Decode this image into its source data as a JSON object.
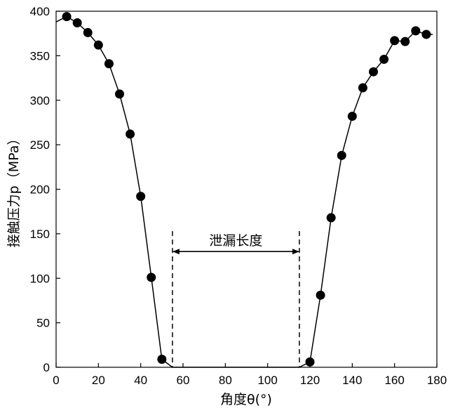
{
  "chart_data": {
    "type": "scatter",
    "title": "",
    "xlabel": "角度θ(°)",
    "ylabel": "接触压力p（MPa）",
    "xlim": [
      0,
      180
    ],
    "ylim": [
      0,
      400
    ],
    "xticks": [
      0,
      20,
      40,
      60,
      80,
      100,
      120,
      140,
      160,
      180
    ],
    "yticks": [
      0,
      50,
      100,
      150,
      200,
      250,
      300,
      350,
      400
    ],
    "grid": false,
    "legend": "none",
    "series": [
      {
        "x": [
          5,
          10,
          15,
          20,
          25,
          30,
          35,
          40,
          45,
          50,
          120,
          125,
          130,
          135,
          140,
          145,
          150,
          155,
          160,
          165,
          170,
          175
        ],
        "y": [
          394,
          387,
          376,
          362,
          341,
          307,
          262,
          192,
          101,
          9,
          6,
          81,
          168,
          238,
          282,
          314,
          332,
          346,
          367,
          366,
          378,
          374
        ],
        "color": "#000000"
      }
    ],
    "curve": {
      "x": [
        0,
        5,
        10,
        15,
        20,
        25,
        30,
        35,
        40,
        45,
        50,
        55,
        115,
        120,
        125,
        130,
        135,
        140,
        145,
        150,
        155,
        160,
        165,
        170,
        175,
        178
      ],
      "y": [
        388,
        394,
        387,
        376,
        362,
        341,
        307,
        262,
        192,
        101,
        9,
        0,
        0,
        6,
        81,
        168,
        238,
        282,
        314,
        332,
        346,
        367,
        366,
        378,
        374,
        374
      ]
    },
    "annotation": {
      "label": "泄漏长度",
      "x_start": 55,
      "x_end": 115,
      "arrow_y": 130,
      "line_top_y": 153
    }
  }
}
